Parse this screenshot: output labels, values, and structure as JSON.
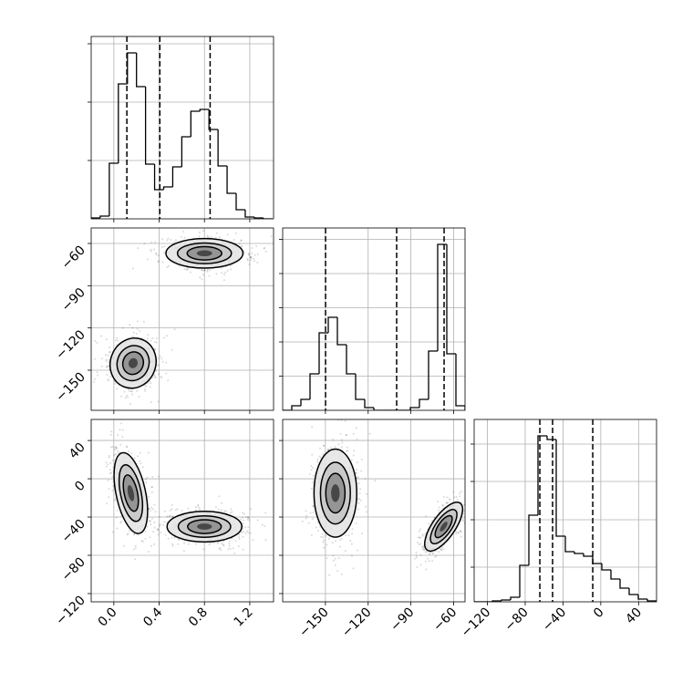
{
  "chart_data": [
    {
      "type": "histogram",
      "color": "#000000",
      "grid": true,
      "bins": [
        -0.2,
        -0.12,
        -0.04,
        0.04,
        0.12,
        0.2,
        0.28,
        0.36,
        0.44,
        0.52,
        0.6,
        0.68,
        0.76,
        0.84,
        0.92,
        1.0,
        1.08,
        1.16,
        1.24,
        1.32,
        1.4
      ],
      "counts": [
        1,
        3,
        61,
        148,
        182,
        145,
        60,
        32,
        35,
        57,
        90,
        118,
        120,
        98,
        58,
        28,
        10,
        2,
        1,
        0
      ],
      "quantiles": [
        0.115,
        0.406,
        0.85
      ],
      "xlim": [
        -0.2,
        1.41
      ],
      "xticks": [
        0,
        0.4,
        0.8,
        1.2
      ],
      "ylim": [
        0,
        200
      ],
      "yticks": [
        64,
        128,
        192
      ]
    },
    {
      "type": "density",
      "color": "#000000",
      "grid": true,
      "xlim": [
        -0.2,
        1.41
      ],
      "xticks": [
        0,
        0.4,
        0.8,
        1.2
      ],
      "ylim": [
        -178.5,
        -49
      ],
      "yticks": [
        {
          "value": -60,
          "label": "−60"
        },
        {
          "value": -90,
          "label": "−90"
        },
        {
          "value": -120,
          "label": "−120"
        },
        {
          "value": -150,
          "label": "−150"
        }
      ],
      "levels": [
        1.0,
        0.7,
        0.45,
        0.2
      ],
      "blobs": [
        {
          "center": [
            0.8,
            -67
          ],
          "radii": [
            0.34,
            10.5
          ],
          "angle": 0
        },
        {
          "center": [
            0.17,
            -145
          ],
          "radii": [
            0.2,
            18
          ],
          "angle": 20
        }
      ]
    },
    {
      "type": "histogram",
      "color": "#000000",
      "grid": true,
      "bins": [
        -180,
        -173.6,
        -167.2,
        -160.8,
        -154.4,
        -148,
        -141.6,
        -135.2,
        -128.8,
        -122.4,
        -116,
        -109.6,
        -103.2,
        -96.8,
        -90.4,
        -84,
        -77.6,
        -71.2,
        -64.8,
        -58.4,
        -52
      ],
      "counts": [
        0,
        5,
        12,
        40,
        85,
        102,
        72,
        40,
        12,
        3,
        0,
        0,
        0,
        0,
        3,
        12,
        65,
        182,
        62,
        5
      ],
      "quantiles": [
        -149.9,
        -100,
        -66.7
      ],
      "xlim": [
        -180,
        -52
      ],
      "xticks": [
        -150,
        -120,
        -90,
        -60
      ],
      "ylim": [
        0,
        200
      ],
      "yticks": [
        37.5,
        75,
        112.5,
        150,
        187.5
      ]
    },
    {
      "type": "density",
      "color": "#000000",
      "grid": true,
      "xlim": [
        -0.2,
        1.41
      ],
      "xticks": [
        {
          "value": 0,
          "label": "0.0"
        },
        0.4,
        0.8,
        1.2
      ],
      "ylim": [
        -128.6,
        62
      ],
      "yticks": [
        40,
        0,
        {
          "value": -40,
          "label": "−40"
        },
        {
          "value": -80,
          "label": "−80"
        },
        {
          "value": -120,
          "label": "−120"
        }
      ],
      "levels": [
        1.0,
        0.7,
        0.45,
        0.2
      ],
      "blobs": [
        {
          "center": [
            0.15,
            -15
          ],
          "radii": [
            0.13,
            43
          ],
          "angle": -12
        },
        {
          "center": [
            0.8,
            -50
          ],
          "radii": [
            0.33,
            16
          ],
          "angle": 0
        }
      ]
    },
    {
      "type": "density",
      "color": "#000000",
      "grid": true,
      "xlim": [
        -180,
        -52
      ],
      "xticks": [
        {
          "value": -150,
          "label": "−150"
        },
        {
          "value": -120,
          "label": "−120"
        },
        {
          "value": -90,
          "label": "−90"
        },
        {
          "value": -60,
          "label": "−60"
        }
      ],
      "ylim": [
        -128.6,
        62
      ],
      "yticks": [
        40,
        0,
        -40,
        -80,
        -120
      ],
      "levels": [
        1.0,
        0.7,
        0.45,
        0.2
      ],
      "blobs": [
        {
          "center": [
            -143,
            -15
          ],
          "radii": [
            15,
            46
          ],
          "angle": 0
        },
        {
          "center": [
            -67,
            -50
          ],
          "radii": [
            8,
            30
          ],
          "angle": 35
        }
      ]
    },
    {
      "type": "histogram",
      "color": "#000000",
      "grid": true,
      "bins": [
        -134,
        -124.35,
        -114.7,
        -105.05,
        -95.4,
        -85.75,
        -76.1,
        -66.45,
        -56.8,
        -47.15,
        -37.5,
        -27.85,
        -18.2,
        -8.55,
        1.1,
        10.75,
        20.4,
        30.05,
        39.7,
        49.35,
        59
      ],
      "counts": [
        0,
        0,
        1,
        2,
        5,
        40,
        95,
        182,
        178,
        72,
        55,
        53,
        50,
        42,
        35,
        25,
        15,
        8,
        3,
        1
      ],
      "quantiles": [
        -64.5,
        -51,
        -8.5
      ],
      "xlim": [
        -134,
        59
      ],
      "xticks": [
        {
          "value": -120,
          "label": "−120"
        },
        {
          "value": -80,
          "label": "−80"
        },
        {
          "value": -40,
          "label": "−40"
        },
        0,
        40
      ],
      "ylim": [
        0,
        200
      ],
      "yticks": [
        38,
        90,
        132,
        173
      ]
    }
  ]
}
